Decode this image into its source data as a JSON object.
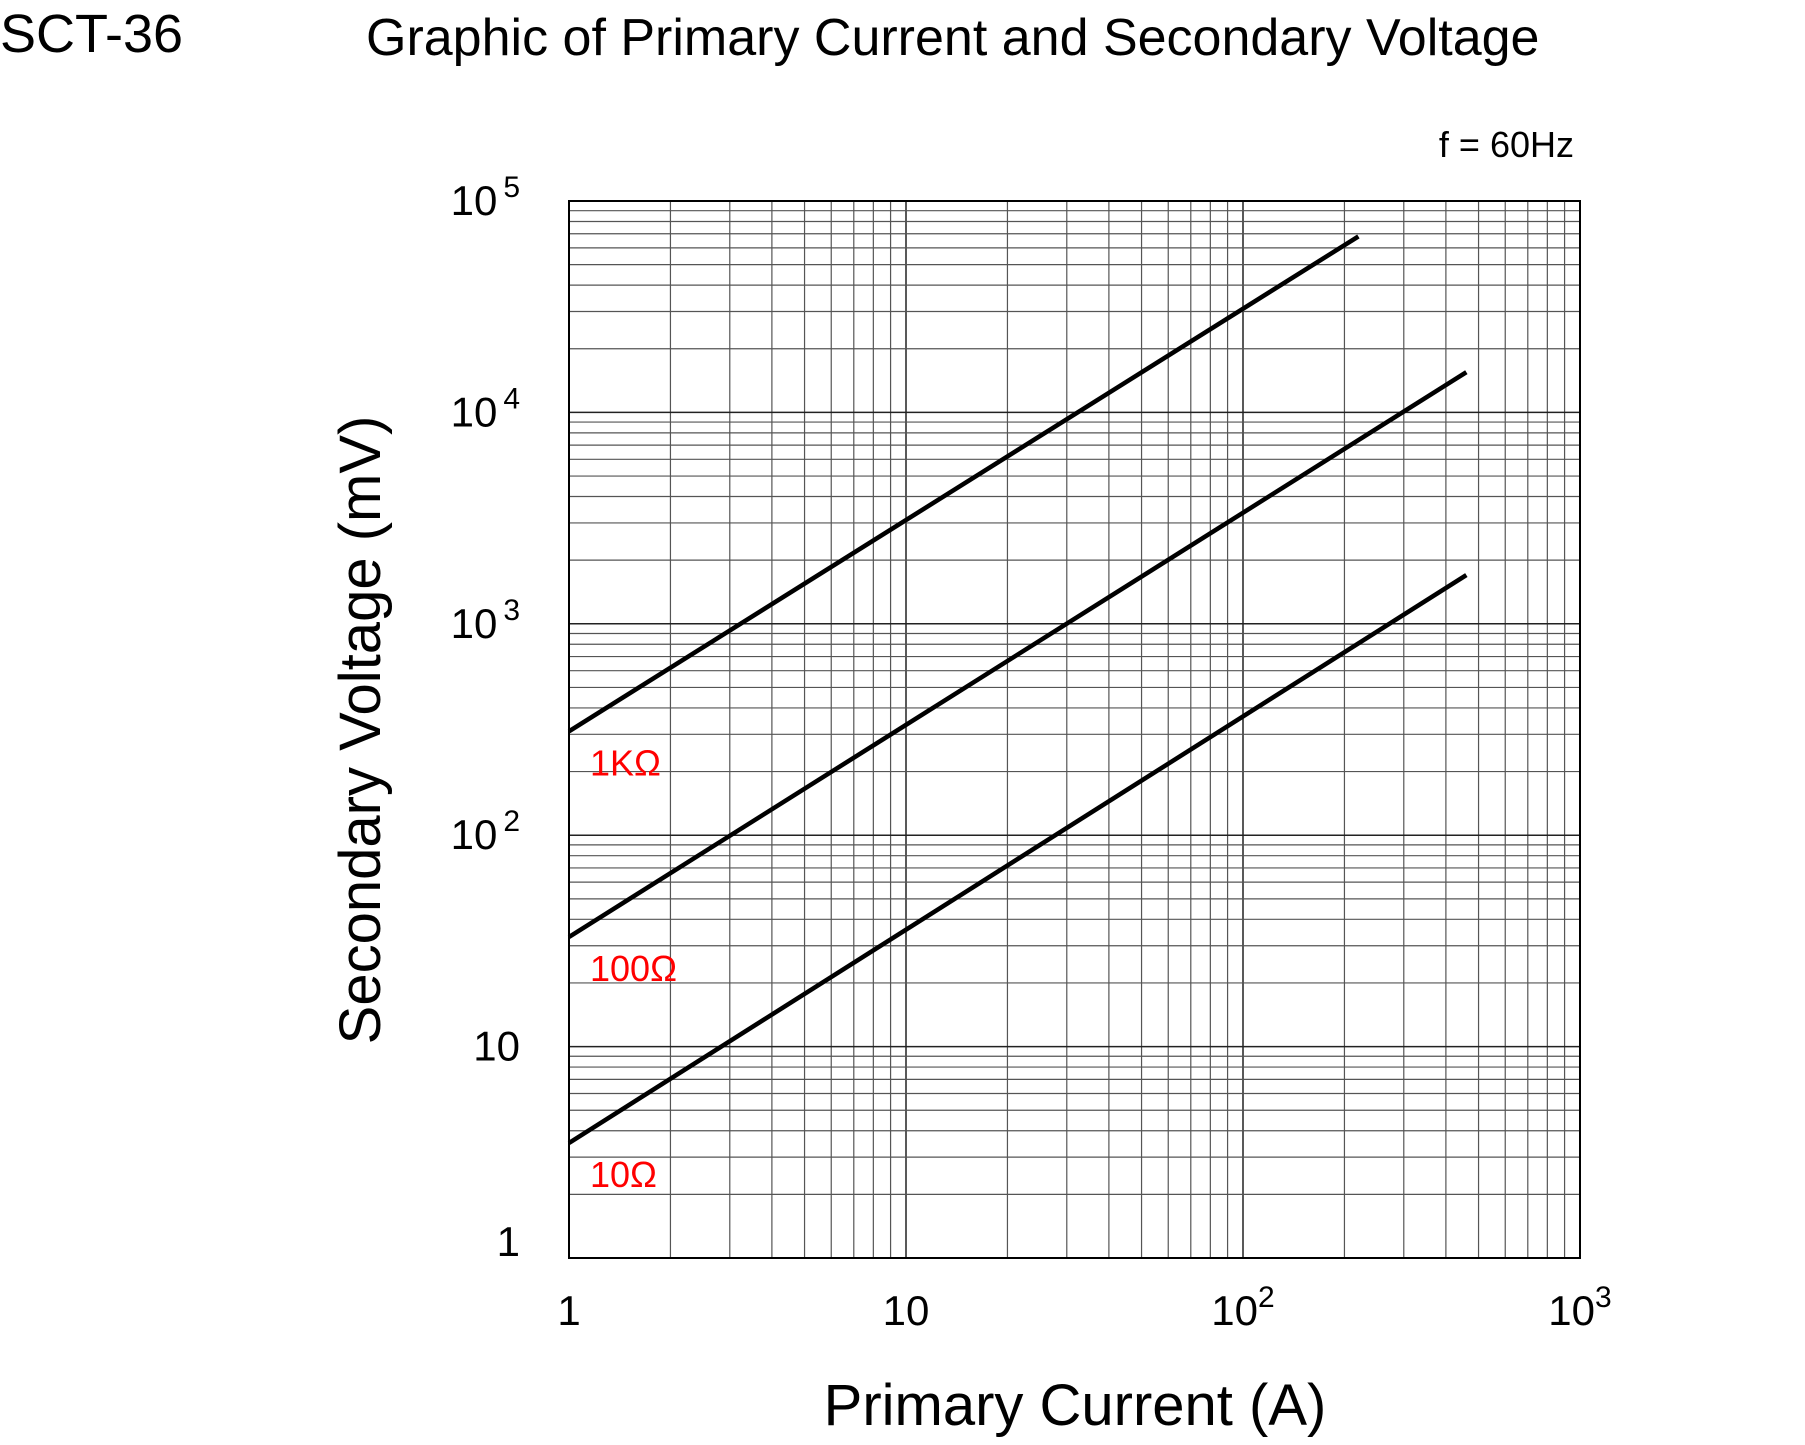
{
  "header": {
    "model": "SCT-36",
    "title": "Graphic of Primary Current and Secondary Voltage"
  },
  "chart_data": {
    "type": "line",
    "title": "Graphic of Primary Current and Secondary Voltage",
    "annotation": "f = 60Hz",
    "xlabel": "Primary Current (A)",
    "ylabel": "Secondary Voltage (mV)",
    "xscale": "log",
    "yscale": "log",
    "xlim": [
      1,
      1000
    ],
    "ylim": [
      1,
      100000
    ],
    "grid": true,
    "xticks": [
      {
        "v": 1,
        "base": "1",
        "exp": ""
      },
      {
        "v": 10,
        "base": "10",
        "exp": ""
      },
      {
        "v": 100,
        "base": "10",
        "exp": "2"
      },
      {
        "v": 1000,
        "base": "10",
        "exp": "3"
      }
    ],
    "yticks": [
      {
        "v": 1,
        "base": "1",
        "exp": ""
      },
      {
        "v": 10,
        "base": "10",
        "exp": ""
      },
      {
        "v": 100,
        "base": "10",
        "exp": "2"
      },
      {
        "v": 1000,
        "base": "10",
        "exp": "3"
      },
      {
        "v": 10000,
        "base": "10",
        "exp": "4"
      },
      {
        "v": 100000,
        "base": "10",
        "exp": "5"
      }
    ],
    "series": [
      {
        "name": "1KΩ",
        "color": "#ff0000",
        "x": [
          1,
          220
        ],
        "y": [
          310,
          68000
        ]
      },
      {
        "name": "100Ω",
        "color": "#ff0000",
        "x": [
          1,
          460
        ],
        "y": [
          33,
          15500
        ]
      },
      {
        "name": "10Ω",
        "color": "#ff0000",
        "x": [
          1,
          460
        ],
        "y": [
          3.5,
          1700
        ]
      }
    ]
  }
}
